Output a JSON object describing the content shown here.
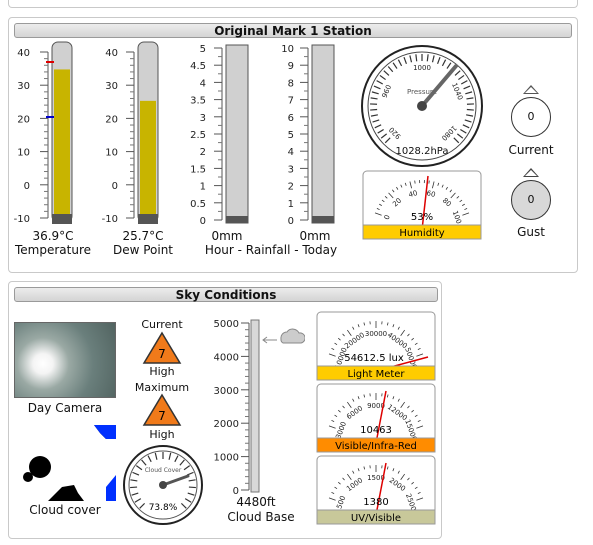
{
  "station": {
    "title": "Original Mark 1 Station",
    "temperature": {
      "value": "36.9°C",
      "label": "Temperature",
      "fill": 0.92,
      "ticks": [
        "40",
        "30",
        "20",
        "10",
        "0",
        "-10"
      ]
    },
    "dewpoint": {
      "value": "25.7°C",
      "label": "Dew Point",
      "fill": 0.72,
      "ticks": [
        "40",
        "30",
        "20",
        "10",
        "0",
        "-10"
      ]
    },
    "rain_hour": {
      "value": "0mm",
      "ticks": [
        "5",
        "4.5",
        "4",
        "3.5",
        "3",
        "2.5",
        "2",
        "1.5",
        "1",
        "0.5",
        "0"
      ]
    },
    "rain_today": {
      "value": "0mm",
      "ticks": [
        "10",
        "9",
        "8",
        "7",
        "6",
        "5",
        "4",
        "3",
        "2",
        "1",
        "0"
      ]
    },
    "rainfall_label": "Hour - Rainfall - Today",
    "pressure": {
      "value": "1028.2hPa",
      "caption": "Pressure",
      "ticks": [
        "960",
        "1000",
        "1040",
        "1080",
        "920"
      ]
    },
    "humidity": {
      "value": "53%",
      "label": "Humidity",
      "ticks": [
        "0",
        "20",
        "40",
        "60",
        "80",
        "100"
      ]
    },
    "wind_current": {
      "value": "0",
      "label": "Current"
    },
    "wind_gust": {
      "value": "0",
      "label": "Gust"
    }
  },
  "sky": {
    "title": "Sky Conditions",
    "day_camera_label": "Day Camera",
    "cloud_cover_label": "Cloud cover",
    "current_label": "Current",
    "current_value": "7",
    "current_level": "High",
    "maximum_label": "Maximum",
    "maximum_value": "7",
    "maximum_level": "High",
    "cloud_gauge_caption": "Cloud Cover",
    "cloud_gauge_value": "73.8%",
    "cloud_base_value": "4480ft",
    "cloud_base_label": "Cloud Base",
    "cloud_base_ticks": [
      "5000",
      "4000",
      "3000",
      "2000",
      "1000",
      "0"
    ],
    "light_meter": {
      "value": "54612.5 lux",
      "label": "Light Meter",
      "ticks": [
        "10000",
        "20000",
        "30000",
        "40000",
        "50000"
      ]
    },
    "visible_ir": {
      "value": "10463",
      "label": "Visible/Infra-Red",
      "ticks": [
        "3000",
        "6000",
        "9000",
        "12000",
        "15000"
      ]
    },
    "uv_visible": {
      "value": "1380",
      "label": "UV/Visible",
      "ticks": [
        "500",
        "1000",
        "1500",
        "2000",
        "2500"
      ]
    }
  },
  "colors": {
    "tube_fill": "#c8b400",
    "humidity_bar": "#ffcc00",
    "light_bar": "#ffcc00",
    "ir_bar": "#ff8c00",
    "uv_bar": "#c8c89a",
    "alert_triangle": "#f07a1a"
  }
}
